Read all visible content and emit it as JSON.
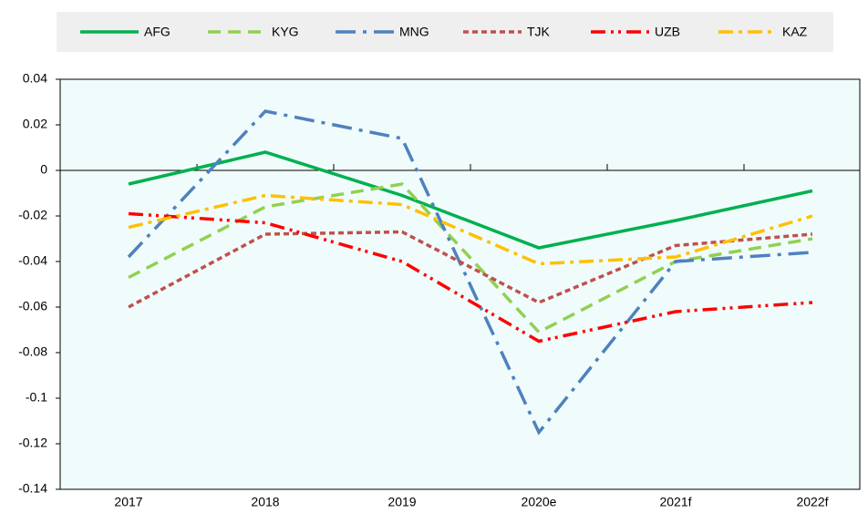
{
  "chart_data": {
    "type": "line",
    "categories": [
      "2017",
      "2018",
      "2019",
      "2020e",
      "2021f",
      "2022f"
    ],
    "series": [
      {
        "name": "AFG",
        "color": "#00b050",
        "values": [
          -0.006,
          0.008,
          -0.011,
          -0.034,
          -0.022,
          -0.009
        ]
      },
      {
        "name": "KYG",
        "color": "#92d050",
        "values": [
          -0.047,
          -0.016,
          -0.006,
          -0.071,
          -0.04,
          -0.03
        ]
      },
      {
        "name": "MNG",
        "color": "#4f81bd",
        "values": [
          -0.038,
          0.026,
          0.014,
          -0.115,
          -0.04,
          -0.036
        ]
      },
      {
        "name": "TJK",
        "color": "#c0504d",
        "values": [
          -0.06,
          -0.028,
          -0.027,
          -0.058,
          -0.033,
          -0.028
        ]
      },
      {
        "name": "UZB",
        "color": "#ff0000",
        "values": [
          -0.019,
          -0.023,
          -0.04,
          -0.075,
          -0.062,
          -0.058
        ]
      },
      {
        "name": "KAZ",
        "color": "#ffc000",
        "values": [
          -0.025,
          -0.011,
          -0.015,
          -0.041,
          -0.038,
          -0.02
        ]
      }
    ],
    "ylim": [
      -0.14,
      0.04
    ],
    "yticks": [
      0.04,
      0.02,
      0,
      -0.02,
      -0.04,
      -0.06,
      -0.08,
      -0.1,
      -0.12,
      -0.14
    ],
    "legend": "top"
  }
}
